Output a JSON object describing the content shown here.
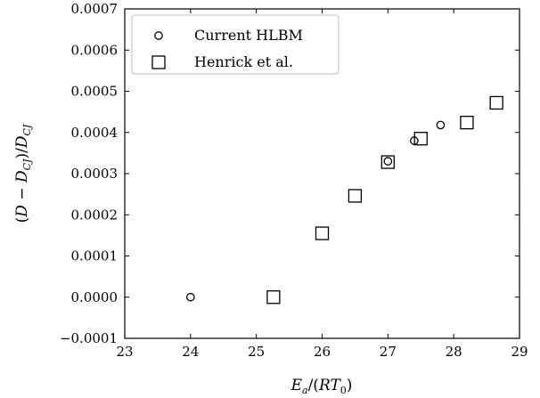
{
  "chart_data": {
    "type": "scatter",
    "xlabel": "E_a/(RT_0)",
    "ylabel": "(D − D_CJ)/D_CJ",
    "xlim": [
      23,
      29
    ],
    "ylim": [
      -0.0001,
      0.0007
    ],
    "x_ticks": [
      "23",
      "24",
      "25",
      "26",
      "27",
      "28",
      "29"
    ],
    "y_ticks": [
      "−0.0001",
      "0.0000",
      "0.0001",
      "0.0002",
      "0.0003",
      "0.0004",
      "0.0005",
      "0.0006",
      "0.0007"
    ],
    "grid": false,
    "legend_position": "top-left",
    "series": [
      {
        "name": "Current HLBM",
        "marker": "circle",
        "x": [
          24.0,
          27.0,
          27.4,
          27.8
        ],
        "y": [
          0.0,
          0.00033,
          0.00038,
          0.000418
        ]
      },
      {
        "name": "Henrick et al.",
        "marker": "square",
        "x": [
          25.26,
          26.0,
          26.5,
          27.0,
          27.5,
          28.2,
          28.65
        ],
        "y": [
          0.0,
          0.000155,
          0.000246,
          0.000328,
          0.000385,
          0.000424,
          0.000472
        ]
      }
    ]
  }
}
